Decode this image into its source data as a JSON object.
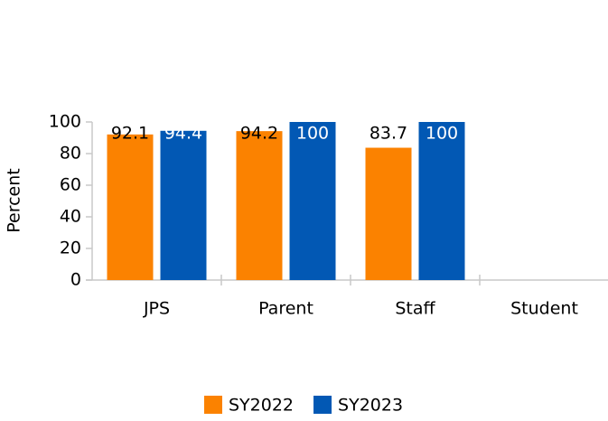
{
  "chart_data": {
    "type": "bar",
    "y_label": "Percent",
    "categories": [
      "JPS",
      "Parent",
      "Staff",
      "Student"
    ],
    "series": [
      {
        "name": "SY2022",
        "color": "#fb8200",
        "values": [
          92.1,
          94.2,
          83.7,
          null
        ]
      },
      {
        "name": "SY2023",
        "color": "#0258b4",
        "values": [
          94.4,
          100,
          100,
          null
        ]
      }
    ],
    "ylim": [
      0,
      100
    ],
    "yticks": [
      0,
      20,
      40,
      60,
      80,
      100
    ],
    "grid": false,
    "legend": "bottom"
  }
}
